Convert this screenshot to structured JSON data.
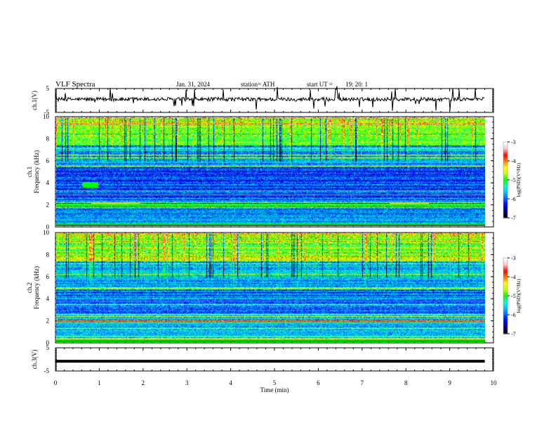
{
  "header": {
    "title": "VLF  Spectra",
    "date": "Jan. 31, 2024",
    "station": "station= ATH",
    "start_ut_label": "start  UT  =",
    "start_ut_value": "19: 20: 1"
  },
  "chart_data": [
    {
      "type": "line",
      "name": "ch1-waveform",
      "ylabel": "ch.1(V)",
      "ylim": [
        -5,
        5
      ],
      "yticks": [
        "5",
        "-5"
      ],
      "xlim": [
        0,
        10
      ],
      "approx_level_v": 0.5,
      "color": "#000000"
    },
    {
      "type": "heatmap",
      "name": "ch1-spectrogram",
      "ylabel_top": "ch.1",
      "ylabel": "Frequency  (kHz)",
      "ylim": [
        0,
        10
      ],
      "yticks": [
        "0",
        "2",
        "4",
        "6",
        "8",
        "10"
      ],
      "xlim": [
        0,
        10
      ],
      "data_end_min": 9.8,
      "colorbar": {
        "label": "log(PSD)(V²/Hz)",
        "ticks": [
          "-3",
          "-4",
          "-5",
          "-6",
          "-7"
        ],
        "range": [
          -7,
          -3
        ]
      }
    },
    {
      "type": "heatmap",
      "name": "ch2-spectrogram",
      "ylabel_top": "ch.2",
      "ylabel": "Frequency  (kHz)",
      "ylim": [
        0,
        10
      ],
      "yticks": [
        "0",
        "2",
        "4",
        "6",
        "8",
        "10"
      ],
      "xlim": [
        0,
        10
      ],
      "data_end_min": 9.8,
      "colorbar": {
        "label": "log(PSD)(V²/Hz)",
        "ticks": [
          "-3",
          "-4",
          "-5",
          "-6",
          "-7"
        ],
        "range": [
          -7,
          -3
        ]
      }
    },
    {
      "type": "line",
      "name": "ch3-waveform",
      "ylabel": "ch.3(V)",
      "ylim": [
        -5,
        5
      ],
      "yticks": [
        "5",
        "-5"
      ],
      "xlim": [
        0,
        10
      ],
      "approx_level_v": -0.8,
      "color": "#000000"
    }
  ],
  "x_axis": {
    "label": "Time  (min)",
    "ticks": [
      "0",
      "1",
      "2",
      "3",
      "4",
      "5",
      "6",
      "7",
      "8",
      "9",
      "10"
    ]
  },
  "colormap": [
    "#000000",
    "#00008b",
    "#0000ff",
    "#0064ff",
    "#00c8ff",
    "#00ffc8",
    "#00ff00",
    "#c8ff00",
    "#ffff00",
    "#ff8000",
    "#ff0000",
    "#ffc0c0",
    "#ffffff"
  ]
}
